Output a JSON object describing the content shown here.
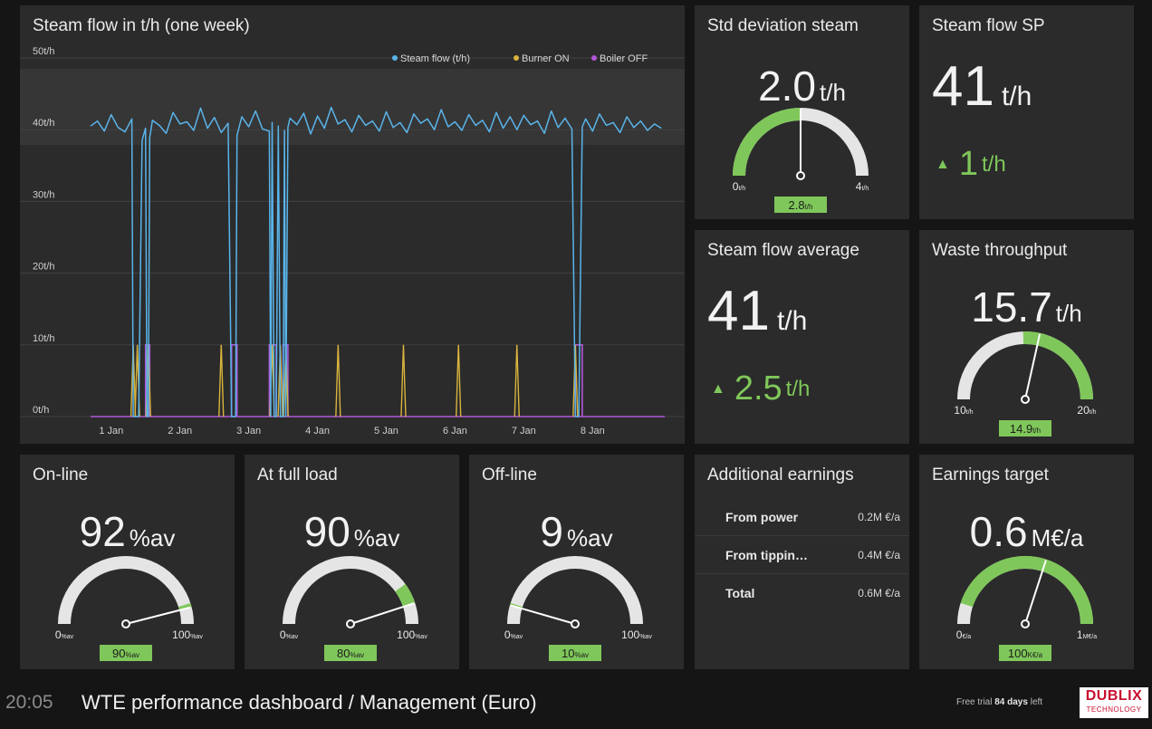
{
  "chart_panel": {
    "title": "Steam flow in t/h (one week)"
  },
  "chart_data": {
    "type": "line",
    "title": "Steam flow in t/h (one week)",
    "y_ticks": [
      "50t/h",
      "40t/h",
      "30t/h",
      "20t/h",
      "10t/h",
      "0t/h"
    ],
    "ylim": [
      0,
      50
    ],
    "x_ticks": [
      "1 Jan",
      "2 Jan",
      "3 Jan",
      "4 Jan",
      "5 Jan",
      "6 Jan",
      "7 Jan",
      "8 Jan"
    ],
    "xlim": [
      0,
      8.35
    ],
    "grid": true,
    "legend_position": "top-right",
    "colors": {
      "steam": "#5ab4ea",
      "burner": "#d9b43d",
      "boiler": "#b157d9"
    },
    "series": [
      {
        "name": "Steam flow (t/h)",
        "x": [
          0.0,
          0.1,
          0.2,
          0.3,
          0.4,
          0.5,
          0.6,
          0.62,
          0.64,
          0.68,
          0.7,
          0.75,
          0.8,
          0.82,
          0.84,
          0.86,
          0.9,
          1.0,
          1.1,
          1.2,
          1.3,
          1.4,
          1.5,
          1.6,
          1.7,
          1.8,
          1.9,
          2.0,
          2.05,
          2.07,
          2.11,
          2.13,
          2.2,
          2.3,
          2.4,
          2.5,
          2.6,
          2.62,
          2.64,
          2.67,
          2.7,
          2.73,
          2.76,
          2.8,
          2.82,
          2.84,
          2.87,
          2.9,
          3.0,
          3.1,
          3.2,
          3.3,
          3.4,
          3.5,
          3.6,
          3.7,
          3.8,
          3.9,
          4.0,
          4.1,
          4.2,
          4.3,
          4.4,
          4.5,
          4.6,
          4.7,
          4.8,
          4.9,
          5.0,
          5.1,
          5.2,
          5.3,
          5.4,
          5.5,
          5.6,
          5.7,
          5.8,
          5.9,
          6.0,
          6.1,
          6.2,
          6.3,
          6.4,
          6.5,
          6.6,
          6.7,
          6.8,
          6.9,
          7.0,
          7.05,
          7.07,
          7.1,
          7.15,
          7.2,
          7.3,
          7.4,
          7.5,
          7.6,
          7.7,
          7.8,
          7.9,
          8.0,
          8.1,
          8.2,
          8.3
        ],
        "y": [
          40.5,
          41.2,
          39.8,
          42.1,
          40.3,
          39.7,
          41.5,
          0,
          0,
          0,
          0,
          38.5,
          40.2,
          0,
          0,
          38.9,
          41.3,
          40.6,
          39.5,
          42.4,
          40.8,
          41.1,
          39.9,
          43.0,
          40.2,
          41.7,
          39.6,
          40.9,
          0,
          0,
          0,
          39.2,
          41.8,
          40.4,
          42.6,
          40.1,
          39.8,
          0,
          41.0,
          0,
          0,
          40.5,
          0,
          0,
          39.9,
          0,
          40.3,
          41.6,
          40.7,
          42.3,
          39.4,
          41.9,
          40.2,
          43.1,
          40.8,
          41.4,
          39.7,
          42.0,
          40.6,
          41.2,
          39.8,
          42.5,
          40.3,
          41.0,
          39.6,
          42.2,
          40.9,
          41.5,
          40.0,
          42.8,
          40.4,
          41.1,
          39.9,
          42.1,
          40.6,
          41.3,
          39.7,
          42.4,
          40.2,
          41.8,
          40.0,
          42.0,
          40.7,
          41.2,
          39.5,
          42.6,
          40.3,
          41.6,
          40.1,
          0,
          0,
          0,
          40.4,
          41.5,
          39.8,
          42.2,
          40.6,
          41.0,
          39.6,
          41.8,
          40.3,
          41.2,
          39.9,
          40.8,
          40.2
        ]
      },
      {
        "name": "Burner ON",
        "spikes": [
          0.62,
          0.68,
          0.84,
          1.9,
          2.64,
          2.76,
          2.84,
          3.6,
          4.55,
          5.35,
          6.2,
          7.05
        ],
        "value": 10
      },
      {
        "name": "Boiler OFF",
        "intervals": [
          [
            0.8,
            0.86
          ],
          [
            2.05,
            2.13
          ],
          [
            2.6,
            2.7
          ],
          [
            2.8,
            2.87
          ],
          [
            7.05,
            7.15
          ]
        ],
        "value": 10
      }
    ]
  },
  "std_dev": {
    "title": "Std deviation steam",
    "value": "2.0",
    "unit": "t/h",
    "min_label": "0",
    "min_unit": "t/h",
    "max_label": "4",
    "max_unit": "t/h",
    "target": "2.8",
    "target_unit": "t/h",
    "gauge": {
      "min": 0,
      "max": 4,
      "value": 2.0,
      "target": 2.8,
      "green_from": 0,
      "green_to": 2.0
    }
  },
  "steam_sp": {
    "title": "Steam flow SP",
    "value": "41",
    "unit": "t/h",
    "delta": "1",
    "delta_unit": "t/h"
  },
  "steam_avg": {
    "title": "Steam flow average",
    "value": "41",
    "unit": "t/h",
    "delta": "2.5",
    "delta_unit": "t/h"
  },
  "waste": {
    "title": "Waste throughput",
    "value": "15.7",
    "unit": "t/h",
    "min_label": "10",
    "min_unit": "t/h",
    "max_label": "20",
    "max_unit": "t/h",
    "target": "14.9",
    "target_unit": "t/h",
    "gauge": {
      "min": 10,
      "max": 20,
      "value": 15.7,
      "target": 14.9,
      "green_from": 14.9,
      "green_to": 20
    }
  },
  "online": {
    "title": "On-line",
    "value": "92",
    "unit": "%av",
    "min_label": "0",
    "min_unit": "%av",
    "max_label": "100",
    "max_unit": "%av",
    "target": "90",
    "target_unit": "%av",
    "gauge": {
      "min": 0,
      "max": 100,
      "value": 92,
      "target": 90,
      "green_from": 90,
      "green_to": 92
    }
  },
  "fullload": {
    "title": "At full load",
    "value": "90",
    "unit": "%av",
    "min_label": "0",
    "min_unit": "%av",
    "max_label": "100",
    "max_unit": "%av",
    "target": "80",
    "target_unit": "%av",
    "gauge": {
      "min": 0,
      "max": 100,
      "value": 90,
      "target": 80,
      "green_from": 80,
      "green_to": 90
    }
  },
  "offline": {
    "title": "Off-line",
    "value": "9",
    "unit": "%av",
    "min_label": "0",
    "min_unit": "%av",
    "max_label": "100",
    "max_unit": "%av",
    "target": "10",
    "target_unit": "%av",
    "gauge": {
      "min": 0,
      "max": 100,
      "value": 9,
      "target": 10,
      "green_from": 9,
      "green_to": 10
    }
  },
  "earnings": {
    "title": "Additional earnings",
    "rows": [
      {
        "label": "From power",
        "value": "0.2M €/a"
      },
      {
        "label": "From tippin…",
        "value": "0.4M €/a"
      },
      {
        "label": "Total",
        "value": "0.6M €/a"
      }
    ]
  },
  "target": {
    "title": "Earnings target",
    "value": "0.6",
    "unit": "M€/a",
    "min_label": "0",
    "min_unit": "€/a",
    "max_label": "1",
    "max_unit": "M€/a",
    "target": "100",
    "target_unit": "K€/a",
    "gauge": {
      "min": 0,
      "max": 1,
      "value": 0.6,
      "target": 0.1,
      "green_from": 0.1,
      "green_to": 1
    }
  },
  "footer": {
    "time": "20:05",
    "title": "WTE performance dashboard / Management (Euro)",
    "trial_prefix": "Free trial",
    "trial_days": "84 days",
    "trial_suffix": "left",
    "logo_line1": "DUBLIX",
    "logo_line2": "TECHNOLOGY"
  }
}
